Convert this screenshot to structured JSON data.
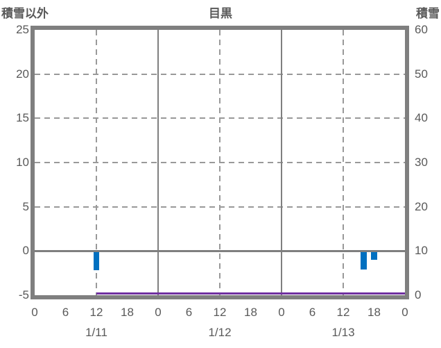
{
  "header": {
    "left_axis_title": "積雪以外",
    "title": "目黒",
    "right_axis_title": "積雪"
  },
  "colors": {
    "bar": "#0070C0",
    "line": "#7030A0",
    "frame": "#7F7F7F",
    "grid": "#999999",
    "text": "#595959"
  },
  "chart_data": {
    "type": "bar",
    "title": "目黒",
    "left_axis": {
      "label": "積雪以外",
      "min": -5,
      "max": 25,
      "ticks": [
        25,
        20,
        15,
        10,
        5,
        0,
        -5
      ]
    },
    "right_axis": {
      "label": "積雪",
      "min": 0,
      "max": 60,
      "ticks": [
        60,
        50,
        40,
        30,
        20,
        10,
        0
      ]
    },
    "x_axis": {
      "hours_span": 72,
      "tick_interval_hours": 6,
      "hour_ticks": [
        "0",
        "6",
        "12",
        "18",
        "0",
        "6",
        "12",
        "18",
        "0",
        "6",
        "12",
        "18",
        "0"
      ],
      "day_labels": [
        "1/11",
        "1/12",
        "1/13"
      ],
      "solid_vlines_hours": [
        24,
        48
      ],
      "dashed_vlines_hours": [
        12,
        36,
        60
      ]
    },
    "grid": {
      "dashed_hlines_left_values": [
        20,
        15,
        10,
        5
      ],
      "zero_line_left_value": 0
    },
    "bars": {
      "axis": "left",
      "width_hours": 1.2,
      "points": [
        {
          "day": "1/11",
          "hour": 12,
          "value": -2.2
        },
        {
          "day": "1/13",
          "hour": 16,
          "value": -2.1
        },
        {
          "day": "1/13",
          "hour": 18,
          "value": -1.0
        }
      ]
    },
    "snow_depth_line": {
      "axis": "right",
      "value": 0,
      "start": {
        "day": "1/11",
        "hour": 12
      },
      "end": {
        "day": "1/13",
        "hour": 24
      }
    }
  }
}
